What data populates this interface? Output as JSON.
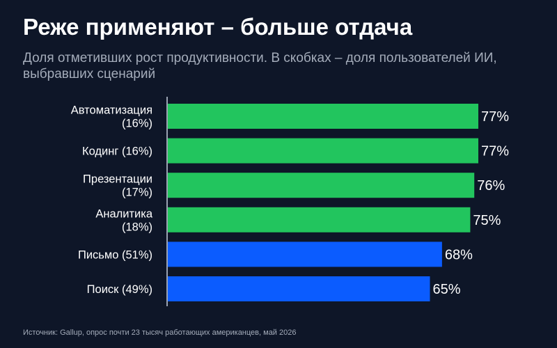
{
  "title": "Реже применяют – больше отдача",
  "subtitle": "Доля отметивших рост продуктивности. В скобках – доля пользователей ИИ, выбравших сценарий",
  "source": "Источник: Gallup, опрос почти 23 тысяч работающих американцев, май 2026",
  "chart_data": {
    "type": "bar",
    "orientation": "horizontal",
    "categories": [
      [
        "Автоматизация",
        "(16%)"
      ],
      [
        "Кодинг (16%)"
      ],
      [
        "Презентации",
        "(17%)"
      ],
      [
        "Аналитика",
        "(18%)"
      ],
      [
        "Письмо (51%)"
      ],
      [
        "Поиск (49%)"
      ]
    ],
    "values": [
      77,
      77,
      76,
      75,
      68,
      65
    ],
    "value_labels": [
      "77%",
      "77%",
      "76%",
      "75%",
      "68%",
      "65%"
    ],
    "bar_colors": [
      "#22c55e",
      "#22c55e",
      "#22c55e",
      "#22c55e",
      "#0b5cff",
      "#0b5cff"
    ],
    "xlim": [
      0,
      100
    ],
    "grid": false,
    "legend": "none"
  },
  "colors": {
    "background": "#0e1628",
    "green": "#22c55e",
    "blue": "#0b5cff",
    "axis": "#9aa3b2",
    "text": "#ffffff",
    "muted": "#a4acba"
  }
}
